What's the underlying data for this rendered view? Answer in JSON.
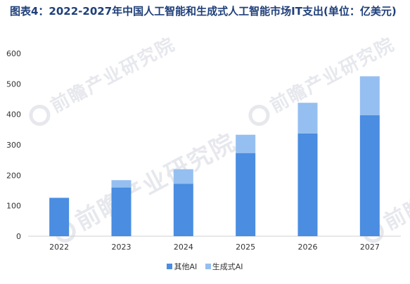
{
  "chart_data": {
    "type": "bar",
    "stacked": true,
    "title": "图表4：2022-2027年中国人工智能和生成式人工智能市场IT支出(单位：亿美元)",
    "categories": [
      "2022",
      "2023",
      "2024",
      "2025",
      "2026",
      "2027"
    ],
    "series": [
      {
        "name": "其他AI",
        "values": [
          126,
          160,
          172,
          273,
          337,
          397
        ],
        "color": "#4a8de1"
      },
      {
        "name": "生成式AI",
        "values": [
          0,
          24,
          48,
          60,
          101,
          128
        ],
        "color": "#95bff0"
      }
    ],
    "yticks": [
      0,
      100,
      200,
      300,
      400,
      500,
      600
    ],
    "ylim": [
      0,
      600
    ],
    "grid": false,
    "legend_position": "bottom"
  },
  "watermark": {
    "text": "前瞻产业研究院"
  }
}
